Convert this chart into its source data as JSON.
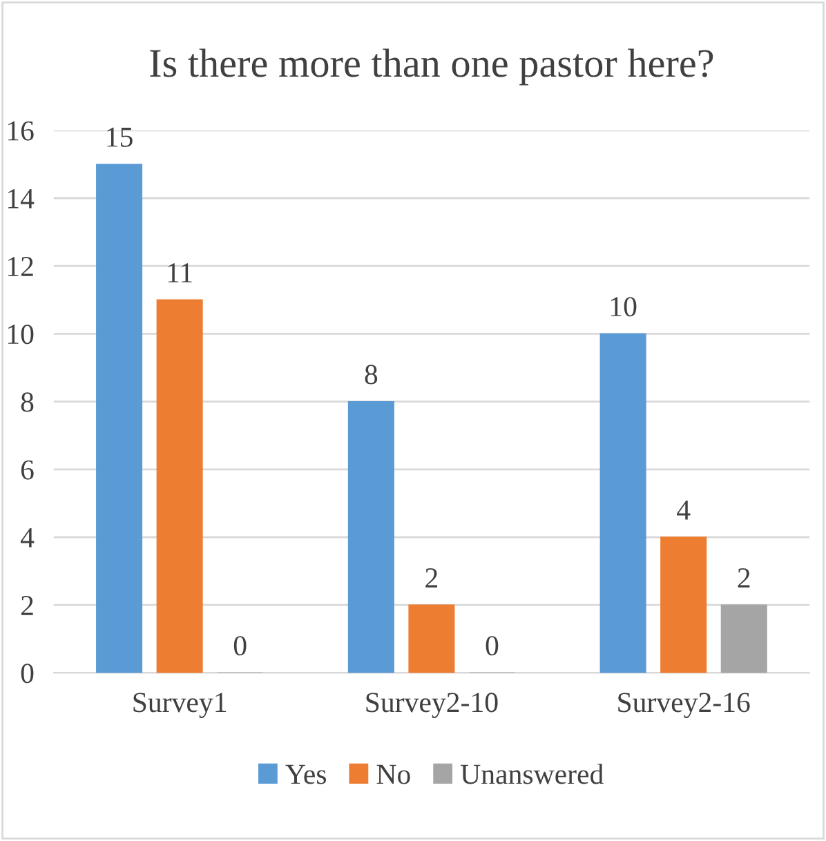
{
  "chart_data": {
    "type": "bar",
    "title": "Is there more than one pastor here?",
    "categories": [
      "Survey1",
      "Survey2-10",
      "Survey2-16"
    ],
    "series": [
      {
        "name": "Yes",
        "color": "#5b9bd5",
        "values": [
          15,
          8,
          10
        ]
      },
      {
        "name": "No",
        "color": "#ed7d31",
        "values": [
          11,
          2,
          4
        ]
      },
      {
        "name": "Unanswered",
        "color": "#a5a5a5",
        "values": [
          0,
          0,
          2
        ]
      }
    ],
    "ylim": [
      0,
      16
    ],
    "yticks": [
      0,
      2,
      4,
      6,
      8,
      10,
      12,
      14,
      16
    ],
    "grid": "y",
    "legend": "bottom",
    "data_labels": true
  }
}
